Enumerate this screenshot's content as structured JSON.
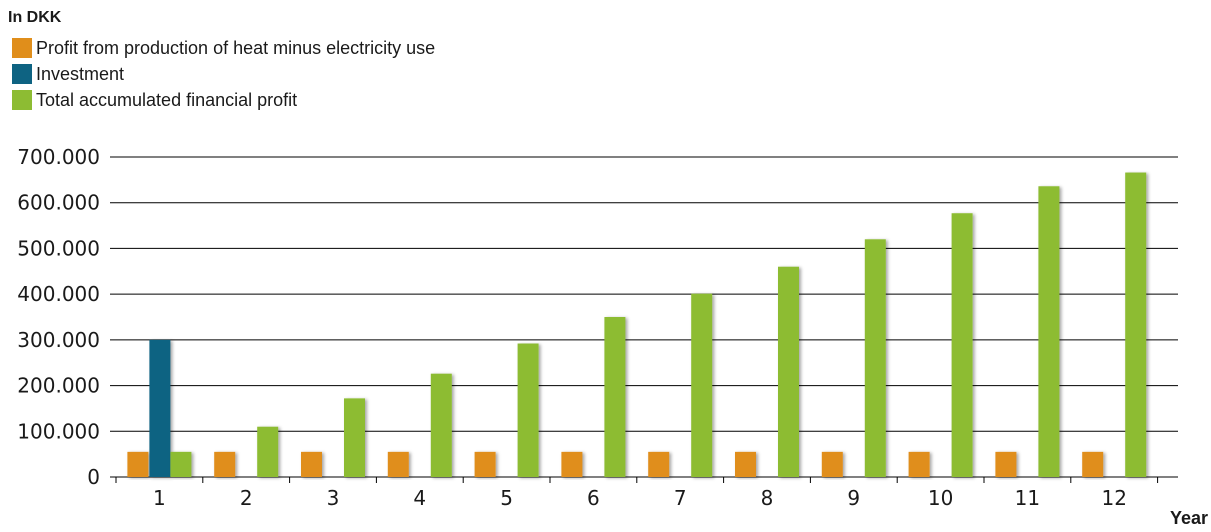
{
  "unit_label": "In DKK",
  "legend": [
    {
      "label": "Profit from production of heat minus electricity use",
      "color": "#E08E1B",
      "series": "profit"
    },
    {
      "label": "Investment",
      "color": "#0E6382",
      "series": "investment"
    },
    {
      "label": "Total accumulated financial profit",
      "color": "#8DBC33",
      "series": "total"
    }
  ],
  "chart_data": {
    "type": "bar",
    "title": "",
    "xlabel": "Year",
    "ylabel": "In DKK",
    "ylim": [
      0,
      700000
    ],
    "yticks": [
      0,
      100000,
      200000,
      300000,
      400000,
      500000,
      600000,
      700000
    ],
    "ytick_labels": [
      "0",
      "100.000",
      "200.000",
      "300.000",
      "400.000",
      "500.000",
      "600.000",
      "700.000"
    ],
    "categories": [
      "1",
      "2",
      "3",
      "4",
      "5",
      "6",
      "7",
      "8",
      "9",
      "10",
      "11",
      "12"
    ],
    "grid": true,
    "legend_position": "top-left",
    "series": [
      {
        "name": "Profit from production of heat minus electricity use",
        "key": "profit",
        "color": "#E08E1B",
        "values": [
          55000,
          55000,
          55000,
          55000,
          55000,
          55000,
          55000,
          55000,
          55000,
          55000,
          55000,
          55000
        ]
      },
      {
        "name": "Investment",
        "key": "investment",
        "color": "#0E6382",
        "values": [
          300000,
          null,
          null,
          null,
          null,
          null,
          null,
          null,
          null,
          null,
          null,
          null
        ]
      },
      {
        "name": "Total accumulated financial profit",
        "key": "total",
        "color": "#8DBC33",
        "values": [
          55000,
          110000,
          172000,
          226000,
          292000,
          350000,
          401000,
          460000,
          520000,
          577000,
          636000,
          666000
        ]
      }
    ]
  }
}
